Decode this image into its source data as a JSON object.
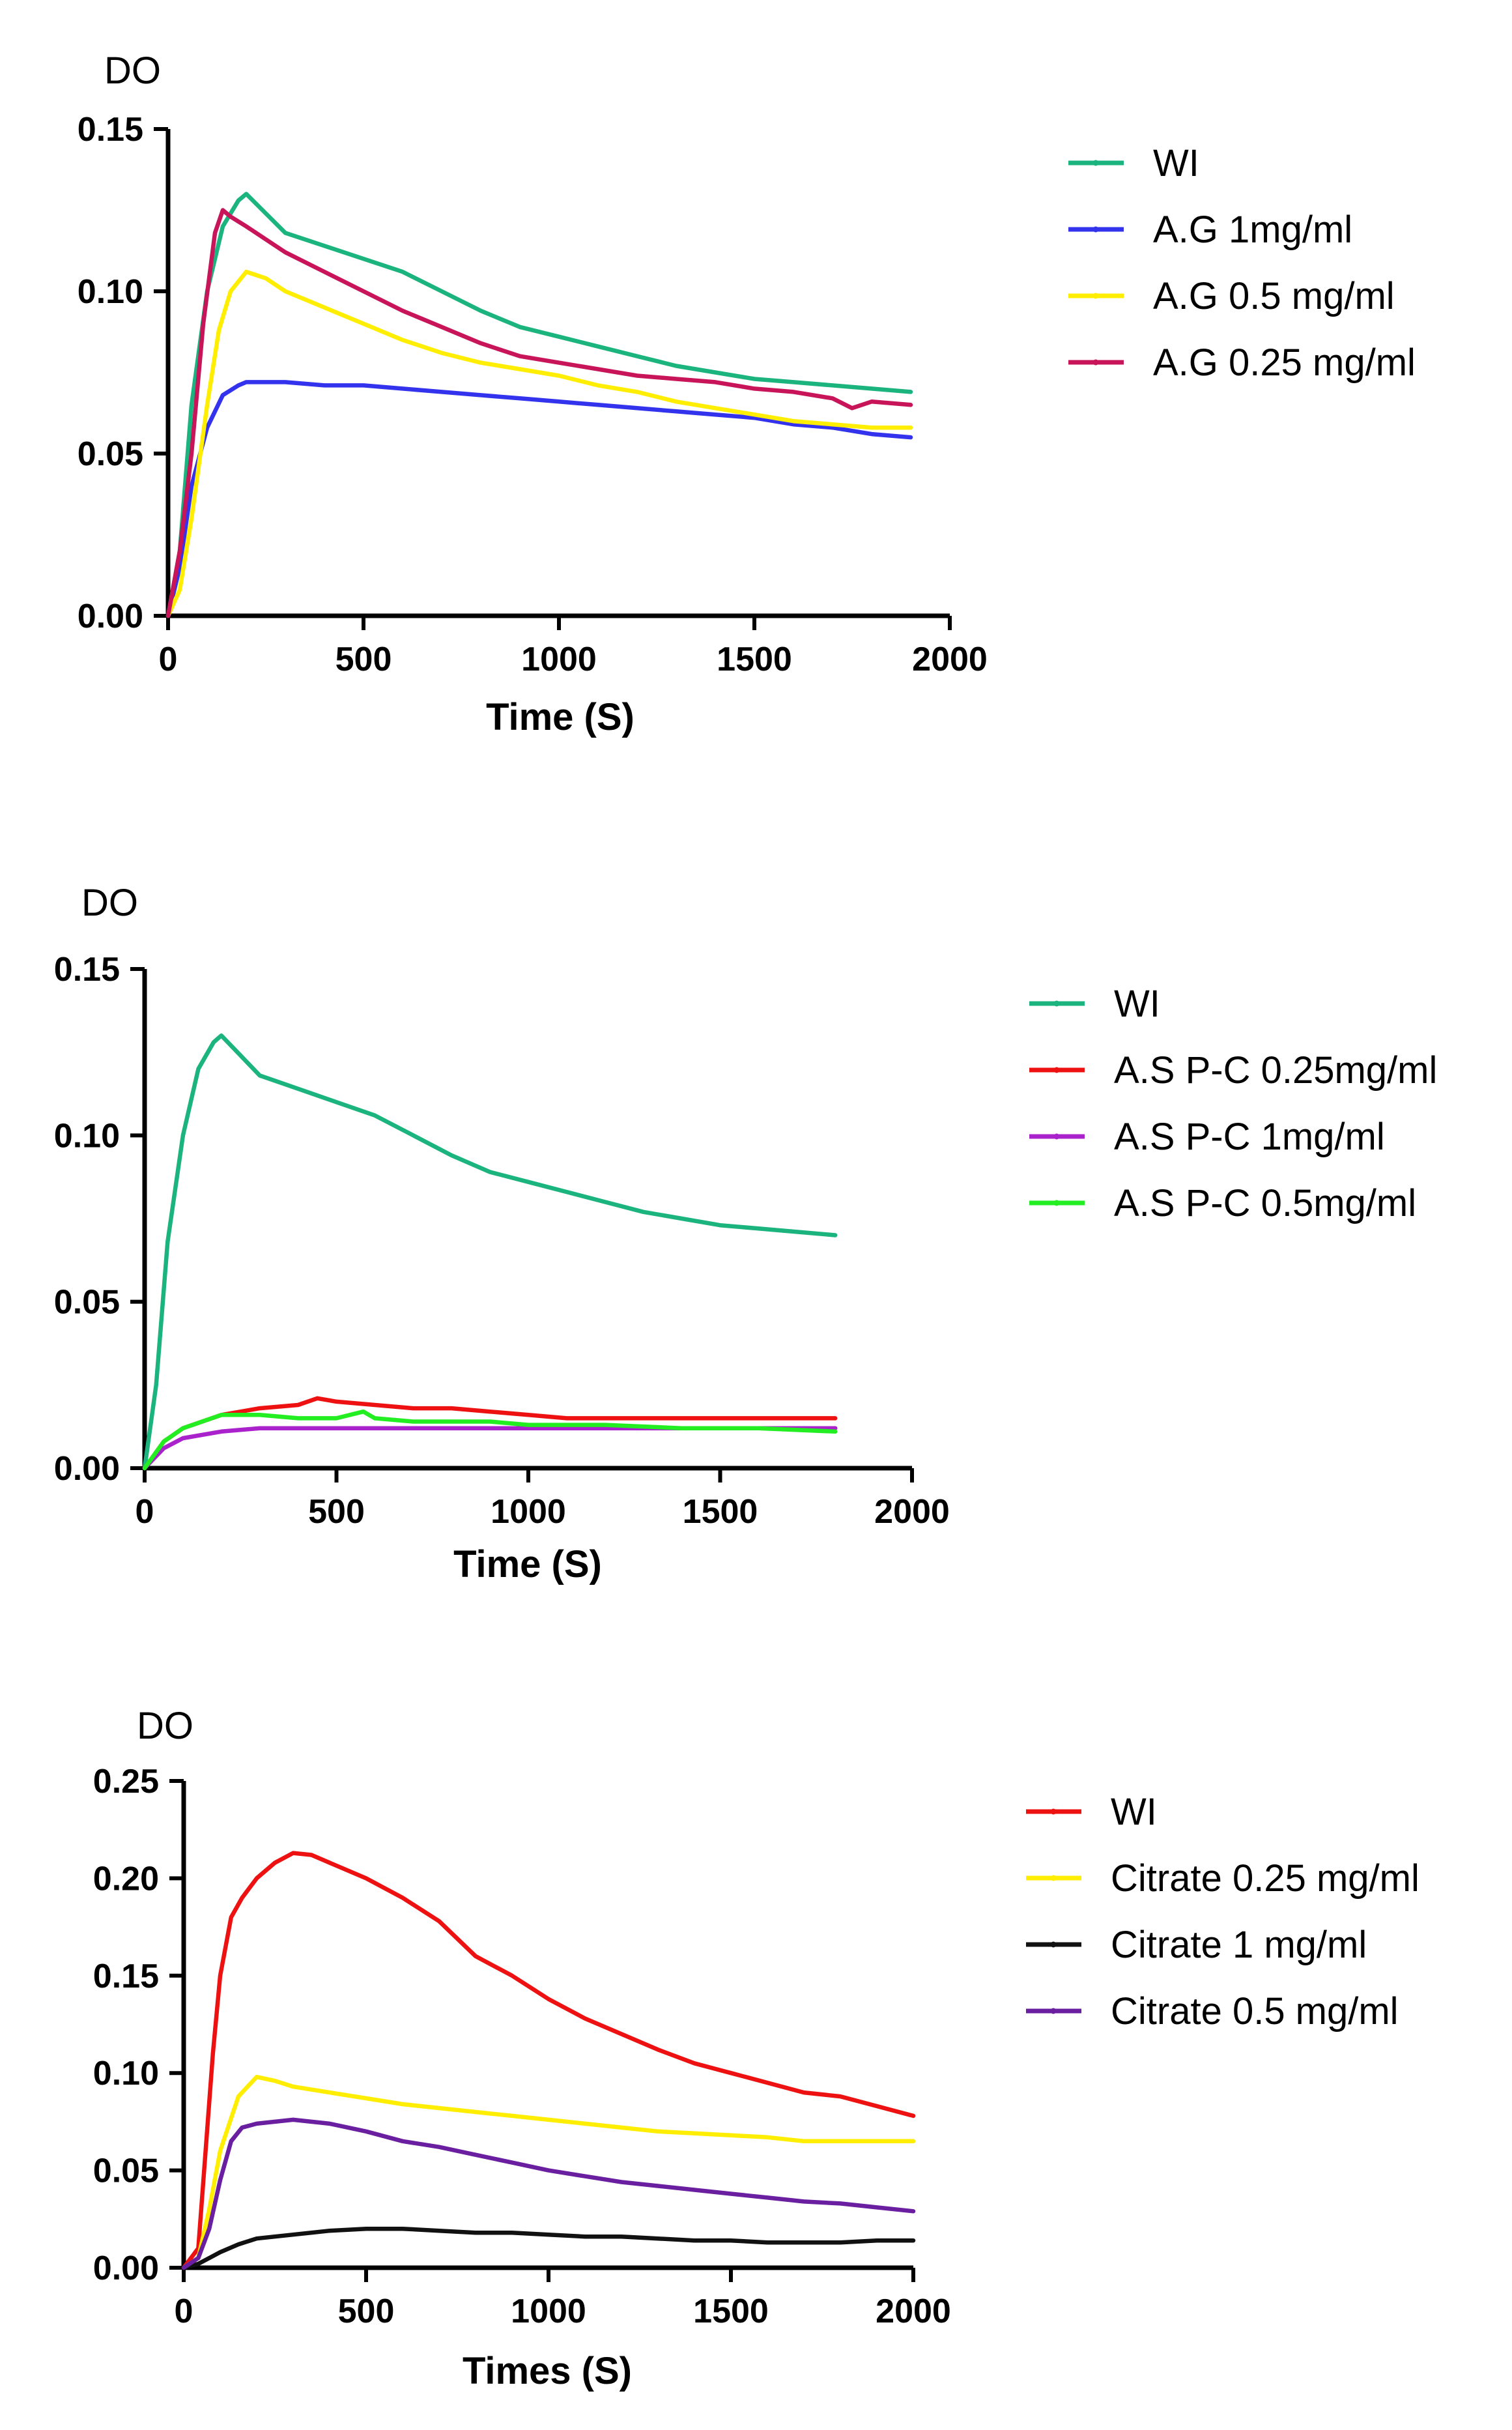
{
  "chart_data": [
    {
      "type": "line",
      "ylabel": "DO",
      "xlabel": "Time (S)",
      "xlim": [
        0,
        2000
      ],
      "ylim": [
        0,
        0.15
      ],
      "xticks": [
        0,
        500,
        1000,
        1500,
        2000
      ],
      "yticks": [
        0.0,
        0.05,
        0.1,
        0.15
      ],
      "xtick_labels": [
        "0",
        "500",
        "1000",
        "1500",
        "2000"
      ],
      "ytick_labels": [
        "0.00",
        "0.05",
        "0.10",
        "0.15"
      ],
      "legend_position": "top-right",
      "series": [
        {
          "name": "WI",
          "color": "#1bb47e",
          "x": [
            0,
            30,
            60,
            100,
            140,
            180,
            200,
            250,
            300,
            400,
            500,
            600,
            700,
            800,
            900,
            1000,
            1100,
            1200,
            1300,
            1400,
            1500,
            1600,
            1700,
            1800,
            1900
          ],
          "y": [
            0,
            0.02,
            0.065,
            0.1,
            0.12,
            0.128,
            0.13,
            0.124,
            0.118,
            0.114,
            0.11,
            0.106,
            0.1,
            0.094,
            0.089,
            0.086,
            0.083,
            0.08,
            0.077,
            0.075,
            0.073,
            0.072,
            0.071,
            0.07,
            0.069
          ]
        },
        {
          "name": "A.G 1mg/ml",
          "color": "#3333ee",
          "x": [
            0,
            30,
            60,
            100,
            140,
            180,
            200,
            300,
            400,
            500,
            600,
            700,
            800,
            900,
            1000,
            1100,
            1200,
            1300,
            1400,
            1500,
            1600,
            1700,
            1800,
            1900
          ],
          "y": [
            0,
            0.015,
            0.04,
            0.058,
            0.068,
            0.071,
            0.072,
            0.072,
            0.071,
            0.071,
            0.07,
            0.069,
            0.068,
            0.067,
            0.066,
            0.065,
            0.064,
            0.063,
            0.062,
            0.061,
            0.059,
            0.058,
            0.056,
            0.055
          ]
        },
        {
          "name": "A.G 0.5 mg/ml",
          "color": "#ffee00",
          "x": [
            0,
            30,
            60,
            100,
            130,
            160,
            200,
            250,
            300,
            400,
            500,
            600,
            700,
            800,
            900,
            1000,
            1100,
            1200,
            1300,
            1400,
            1500,
            1600,
            1700,
            1800,
            1900
          ],
          "y": [
            0,
            0.008,
            0.03,
            0.065,
            0.088,
            0.1,
            0.106,
            0.104,
            0.1,
            0.095,
            0.09,
            0.085,
            0.081,
            0.078,
            0.076,
            0.074,
            0.071,
            0.069,
            0.066,
            0.064,
            0.062,
            0.06,
            0.059,
            0.058,
            0.058
          ]
        },
        {
          "name": "A.G 0.25 mg/ml",
          "color": "#c8155a",
          "x": [
            0,
            30,
            60,
            90,
            120,
            140,
            160,
            200,
            250,
            300,
            400,
            500,
            600,
            700,
            800,
            900,
            1000,
            1100,
            1200,
            1300,
            1400,
            1500,
            1600,
            1700,
            1750,
            1800,
            1900
          ],
          "y": [
            0,
            0.02,
            0.05,
            0.09,
            0.118,
            0.125,
            0.123,
            0.12,
            0.116,
            0.112,
            0.106,
            0.1,
            0.094,
            0.089,
            0.084,
            0.08,
            0.078,
            0.076,
            0.074,
            0.073,
            0.072,
            0.07,
            0.069,
            0.067,
            0.064,
            0.066,
            0.065
          ]
        }
      ]
    },
    {
      "type": "line",
      "ylabel": "DO",
      "xlabel": "Time (S)",
      "xlim": [
        0,
        2000
      ],
      "ylim": [
        0,
        0.15
      ],
      "xticks": [
        0,
        500,
        1000,
        1500,
        2000
      ],
      "yticks": [
        0.0,
        0.05,
        0.1,
        0.15
      ],
      "xtick_labels": [
        "0",
        "500",
        "1000",
        "1500",
        "2000"
      ],
      "ytick_labels": [
        "0.00",
        "0.05",
        "0.10",
        "0.15"
      ],
      "legend_position": "top-right",
      "series": [
        {
          "name": "WI",
          "color": "#1bb47e",
          "x": [
            0,
            30,
            60,
            100,
            140,
            180,
            200,
            250,
            300,
            400,
            500,
            600,
            700,
            800,
            900,
            1000,
            1100,
            1200,
            1300,
            1400,
            1500,
            1600,
            1700,
            1800
          ],
          "y": [
            0,
            0.025,
            0.068,
            0.1,
            0.12,
            0.128,
            0.13,
            0.124,
            0.118,
            0.114,
            0.11,
            0.106,
            0.1,
            0.094,
            0.089,
            0.086,
            0.083,
            0.08,
            0.077,
            0.075,
            0.073,
            0.072,
            0.071,
            0.07
          ]
        },
        {
          "name": "A.S P-C 0.25mg/ml",
          "color": "#ee1111",
          "x": [
            0,
            50,
            100,
            200,
            300,
            400,
            450,
            500,
            600,
            700,
            800,
            900,
            1000,
            1100,
            1200,
            1400,
            1600,
            1800
          ],
          "y": [
            0,
            0.008,
            0.012,
            0.016,
            0.018,
            0.019,
            0.021,
            0.02,
            0.019,
            0.018,
            0.018,
            0.017,
            0.016,
            0.015,
            0.015,
            0.015,
            0.015,
            0.015
          ]
        },
        {
          "name": "A.S P-C 1mg/ml",
          "color": "#aa22cc",
          "x": [
            0,
            50,
            100,
            200,
            300,
            400,
            600,
            800,
            1000,
            1200,
            1400,
            1600,
            1800
          ],
          "y": [
            0,
            0.006,
            0.009,
            0.011,
            0.012,
            0.012,
            0.012,
            0.012,
            0.012,
            0.012,
            0.012,
            0.012,
            0.012
          ]
        },
        {
          "name": "A.S P-C 0.5mg/ml",
          "color": "#22ee22",
          "x": [
            0,
            50,
            100,
            200,
            300,
            400,
            500,
            570,
            600,
            700,
            800,
            900,
            1000,
            1200,
            1400,
            1600,
            1800
          ],
          "y": [
            0,
            0.008,
            0.012,
            0.016,
            0.016,
            0.015,
            0.015,
            0.017,
            0.015,
            0.014,
            0.014,
            0.014,
            0.013,
            0.013,
            0.012,
            0.012,
            0.011
          ]
        }
      ]
    },
    {
      "type": "line",
      "ylabel": "DO",
      "xlabel": "Times (S)",
      "xlim": [
        0,
        2000
      ],
      "ylim": [
        0,
        0.25
      ],
      "xticks": [
        0,
        500,
        1000,
        1500,
        2000
      ],
      "yticks": [
        0.0,
        0.05,
        0.1,
        0.15,
        0.2,
        0.25
      ],
      "xtick_labels": [
        "0",
        "500",
        "1000",
        "1500",
        "2000"
      ],
      "ytick_labels": [
        "0.00",
        "0.05",
        "0.10",
        "0.15",
        "0.20",
        "0.25"
      ],
      "legend_position": "top-right",
      "series": [
        {
          "name": "WI",
          "color": "#ee1111",
          "x": [
            0,
            40,
            60,
            80,
            100,
            130,
            160,
            200,
            250,
            300,
            350,
            400,
            500,
            600,
            700,
            800,
            900,
            1000,
            1100,
            1200,
            1300,
            1400,
            1500,
            1600,
            1700,
            1800,
            1900,
            2000
          ],
          "y": [
            0,
            0.01,
            0.06,
            0.11,
            0.15,
            0.18,
            0.19,
            0.2,
            0.208,
            0.213,
            0.212,
            0.208,
            0.2,
            0.19,
            0.178,
            0.16,
            0.15,
            0.138,
            0.128,
            0.12,
            0.112,
            0.105,
            0.1,
            0.095,
            0.09,
            0.088,
            0.083,
            0.078
          ]
        },
        {
          "name": "Citrate 0.25 mg/ml",
          "color": "#ffee00",
          "x": [
            0,
            40,
            70,
            100,
            150,
            200,
            250,
            300,
            400,
            500,
            600,
            700,
            800,
            900,
            1000,
            1100,
            1200,
            1300,
            1400,
            1500,
            1600,
            1700,
            1800,
            1900,
            2000
          ],
          "y": [
            0,
            0.005,
            0.03,
            0.06,
            0.088,
            0.098,
            0.096,
            0.093,
            0.09,
            0.087,
            0.084,
            0.082,
            0.08,
            0.078,
            0.076,
            0.074,
            0.072,
            0.07,
            0.069,
            0.068,
            0.067,
            0.065,
            0.065,
            0.065,
            0.065
          ]
        },
        {
          "name": "Citrate 1 mg/ml",
          "color": "#111111",
          "x": [
            0,
            40,
            80,
            100,
            150,
            200,
            300,
            400,
            500,
            600,
            700,
            800,
            900,
            1000,
            1100,
            1200,
            1300,
            1400,
            1500,
            1600,
            1700,
            1800,
            1900,
            2000
          ],
          "y": [
            0,
            0.002,
            0.006,
            0.008,
            0.012,
            0.015,
            0.017,
            0.019,
            0.02,
            0.02,
            0.019,
            0.018,
            0.018,
            0.017,
            0.016,
            0.016,
            0.015,
            0.014,
            0.014,
            0.013,
            0.013,
            0.013,
            0.014,
            0.014
          ]
        },
        {
          "name": "Citrate 0.5 mg/ml",
          "color": "#6a1fa0",
          "x": [
            0,
            40,
            70,
            100,
            130,
            160,
            200,
            300,
            400,
            500,
            600,
            700,
            800,
            900,
            1000,
            1100,
            1200,
            1300,
            1400,
            1500,
            1600,
            1700,
            1800,
            1900,
            2000
          ],
          "y": [
            0,
            0.005,
            0.02,
            0.045,
            0.065,
            0.072,
            0.074,
            0.076,
            0.074,
            0.07,
            0.065,
            0.062,
            0.058,
            0.054,
            0.05,
            0.047,
            0.044,
            0.042,
            0.04,
            0.038,
            0.036,
            0.034,
            0.033,
            0.031,
            0.029
          ]
        }
      ]
    }
  ]
}
